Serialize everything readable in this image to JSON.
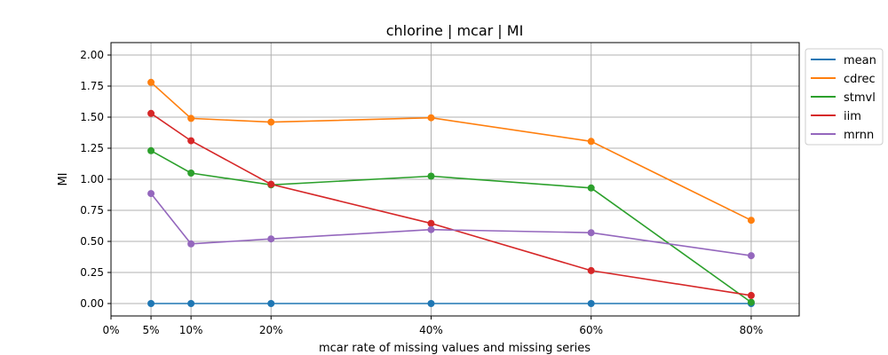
{
  "chart_data": {
    "type": "line",
    "title": "chlorine | mcar | MI",
    "xlabel": "mcar rate of missing values and missing series",
    "ylabel": "MI",
    "x_ticks": [
      {
        "value": 0,
        "label": "0%"
      },
      {
        "value": 5,
        "label": "5%"
      },
      {
        "value": 10,
        "label": "10%"
      },
      {
        "value": 20,
        "label": "20%"
      },
      {
        "value": 40,
        "label": "40%"
      },
      {
        "value": 60,
        "label": "60%"
      },
      {
        "value": 80,
        "label": "80%"
      }
    ],
    "y_ticks": [
      0.0,
      0.25,
      0.5,
      0.75,
      1.0,
      1.25,
      1.5,
      1.75,
      2.0
    ],
    "y_tick_labels": [
      "0.00",
      "0.25",
      "0.50",
      "0.75",
      "1.00",
      "1.25",
      "1.50",
      "1.75",
      "2.00"
    ],
    "xlim": [
      0,
      86
    ],
    "ylim": [
      -0.1,
      2.1
    ],
    "grid": true,
    "legend_position": "outside-top-right",
    "x": [
      5,
      10,
      20,
      40,
      60,
      80
    ],
    "series": [
      {
        "name": "mean",
        "color": "#1f77b4",
        "values": [
          0.0,
          0.0,
          0.0,
          0.0,
          0.0,
          0.0
        ]
      },
      {
        "name": "cdrec",
        "color": "#ff7f0e",
        "values": [
          1.78,
          1.49,
          1.46,
          1.495,
          1.305,
          0.67
        ]
      },
      {
        "name": "stmvl",
        "color": "#2ca02c",
        "values": [
          1.23,
          1.05,
          0.955,
          1.025,
          0.93,
          0.01
        ]
      },
      {
        "name": "iim",
        "color": "#d62728",
        "values": [
          1.53,
          1.31,
          0.96,
          0.645,
          0.265,
          0.065
        ]
      },
      {
        "name": "mrnn",
        "color": "#9467bd",
        "values": [
          0.885,
          0.48,
          0.52,
          0.595,
          0.57,
          0.385
        ]
      }
    ]
  }
}
